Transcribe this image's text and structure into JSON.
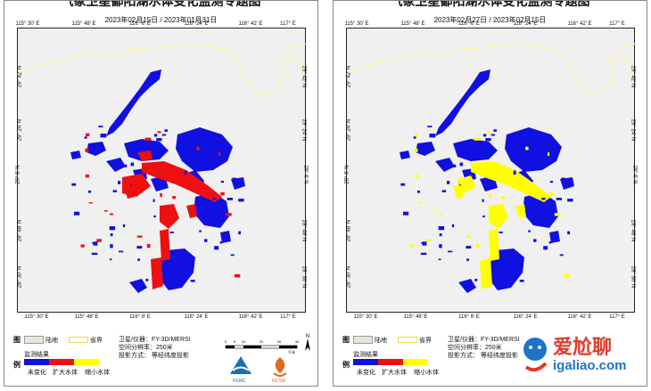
{
  "colors": {
    "no_change": "#1010e0",
    "expanded": "#ee1010",
    "shrunk": "#ffff00",
    "land": "#f0f0f0",
    "border": "#fff4a0"
  },
  "panels": [
    {
      "title": "气象卫星鄱阳湖水体变化监测专题图",
      "dates": "2023年02月15日 / 2023年01月31日",
      "mode": "expand"
    },
    {
      "title": "气象卫星鄱阳湖水体变化监测专题图",
      "dates": "2023年02月27日 / 2023年02月15日",
      "mode": "shrink"
    }
  ],
  "axes": {
    "lon_ticks": [
      "115° 30′ E",
      "115° 48′ E",
      "116° 6′ E",
      "116° 24′ E",
      "116° 42′ E",
      "117° E"
    ],
    "lat_ticks": [
      "29° 42′ N",
      "29° 24′ N",
      "29° 6′ N",
      "28° 48′ N",
      "28° 30′ N"
    ]
  },
  "legend": {
    "label_a": "图",
    "label_b": "例",
    "land": "陆地",
    "border": "省界",
    "result_title": "监测结果",
    "no_change": "未变化",
    "expanded": "扩大水体",
    "shrunk": "缩小水体",
    "satellite": "卫星/仪器：FY-3D/MERSI",
    "resolution": "空间分辨率：250米",
    "projection": "投影方式：  等经纬度投影",
    "scale_values": [
      "0",
      "5",
      "10",
      "20",
      "30",
      "40"
    ],
    "scale_unit": "千米",
    "north": "N",
    "logo1": "NSMC",
    "logo2": "NCSW"
  },
  "watermark": {
    "line1": "爱尬聊",
    "line2": "igaliao.com"
  }
}
